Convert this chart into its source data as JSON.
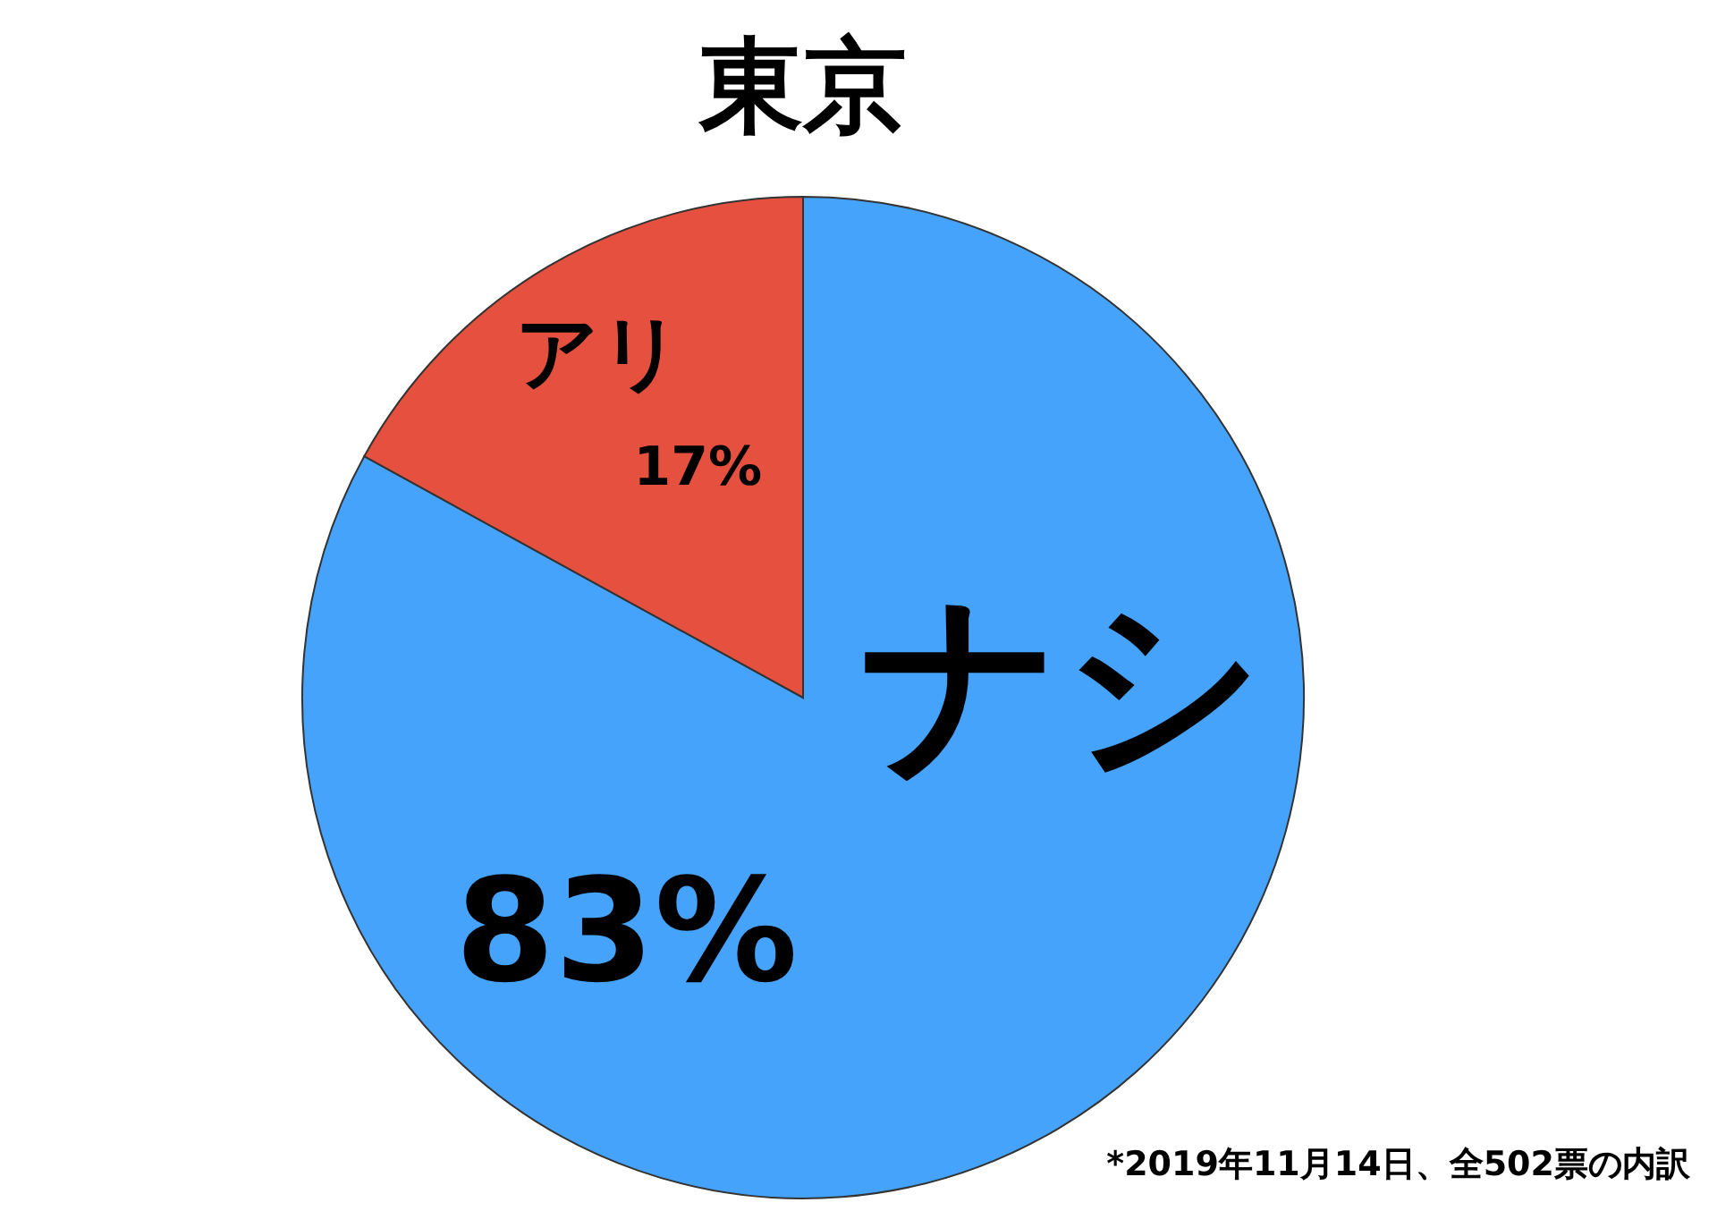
{
  "chart_data": {
    "type": "pie",
    "title": "東京",
    "categories": [
      "ナシ",
      "アリ"
    ],
    "values": [
      83,
      17
    ],
    "colors": [
      "#45a3fb",
      "#e6503e"
    ],
    "value_labels": [
      "83%",
      "17%"
    ],
    "annotations": [
      "*2019年11月14日、全502票の内訳"
    ]
  }
}
